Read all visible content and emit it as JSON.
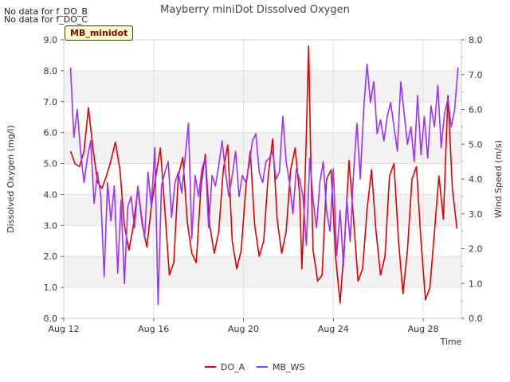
{
  "notices": [
    "No data for f_DO_B",
    "No data for f_DO_C"
  ],
  "badge": "MB_minidot",
  "chart_data": {
    "type": "line",
    "title": "Mayberry miniDot Dissolved Oxygen",
    "xlabel": "Time",
    "ylabel": "Dissolved Oxygen (mg/l)",
    "y2label": "Wind Speed (m/s)",
    "xlim": [
      12,
      29.7
    ],
    "ylim": [
      0,
      9
    ],
    "y2lim": [
      0,
      8
    ],
    "x_ticks": [
      12,
      16,
      20,
      24,
      28
    ],
    "x_tick_labels": [
      "Aug 12",
      "Aug 16",
      "Aug 20",
      "Aug 24",
      "Aug 28"
    ],
    "y_ticks": [
      "0.0",
      "1.0",
      "2.0",
      "3.0",
      "4.0",
      "5.0",
      "6.0",
      "7.0",
      "8.0",
      "9.0"
    ],
    "y2_ticks": [
      "0.0",
      "1.0",
      "2.0",
      "3.0",
      "4.0",
      "5.0",
      "6.0",
      "7.0",
      "8.0"
    ],
    "grid": true,
    "legend_position": "bottom",
    "series": [
      {
        "name": "DO_A",
        "axis": "left",
        "color": "#e00000",
        "x": [
          12.3,
          12.5,
          12.7,
          12.9,
          13.1,
          13.3,
          13.5,
          13.7,
          13.9,
          14.1,
          14.3,
          14.5,
          14.7,
          14.9,
          15.1,
          15.3,
          15.5,
          15.7,
          15.9,
          16.1,
          16.3,
          16.5,
          16.7,
          16.9,
          17.1,
          17.3,
          17.5,
          17.7,
          17.9,
          18.1,
          18.3,
          18.5,
          18.7,
          18.9,
          19.1,
          19.3,
          19.5,
          19.7,
          19.9,
          20.1,
          20.3,
          20.5,
          20.7,
          20.9,
          21.1,
          21.3,
          21.5,
          21.7,
          21.9,
          22.1,
          22.3,
          22.5,
          22.6,
          22.7,
          22.8,
          22.9,
          23.0,
          23.1,
          23.3,
          23.5,
          23.7,
          23.9,
          24.1,
          24.3,
          24.5,
          24.7,
          24.9,
          25.1,
          25.3,
          25.5,
          25.7,
          25.9,
          26.1,
          26.3,
          26.5,
          26.7,
          26.9,
          27.1,
          27.3,
          27.5,
          27.7,
          27.9,
          28.1,
          28.3,
          28.5,
          28.7,
          28.9,
          29.1,
          29.3,
          29.5
        ],
        "y": [
          5.4,
          5.0,
          4.9,
          5.4,
          6.8,
          5.5,
          4.4,
          4.2,
          4.6,
          5.1,
          5.7,
          4.8,
          3.0,
          2.2,
          3.0,
          4.2,
          3.0,
          2.3,
          3.6,
          4.6,
          5.5,
          3.5,
          1.4,
          1.8,
          4.6,
          5.2,
          3.1,
          2.1,
          1.8,
          4.2,
          5.3,
          3.0,
          2.1,
          2.8,
          4.8,
          5.6,
          2.5,
          1.6,
          2.2,
          4.2,
          5.4,
          3.0,
          2.0,
          2.5,
          4.6,
          5.8,
          3.2,
          2.1,
          2.8,
          4.8,
          5.5,
          4.0,
          1.6,
          3.5,
          6.0,
          8.8,
          5.0,
          2.2,
          1.2,
          1.4,
          4.5,
          4.8,
          2.0,
          0.5,
          2.5,
          5.1,
          3.2,
          1.2,
          1.6,
          3.5,
          4.8,
          2.8,
          1.4,
          2.0,
          4.6,
          5.0,
          2.5,
          0.8,
          2.2,
          4.5,
          4.9,
          2.5,
          0.6,
          1.0,
          2.8,
          4.6,
          3.2,
          7.2,
          4.2,
          2.9
        ]
      },
      {
        "name": "MB_WS",
        "axis": "right",
        "color": "#9b30ff",
        "x": [
          12.3,
          12.45,
          12.6,
          12.75,
          12.9,
          13.05,
          13.2,
          13.35,
          13.5,
          13.65,
          13.8,
          13.95,
          14.1,
          14.25,
          14.4,
          14.55,
          14.7,
          14.85,
          15.0,
          15.15,
          15.3,
          15.45,
          15.6,
          15.75,
          15.9,
          16.05,
          16.2,
          16.35,
          16.5,
          16.65,
          16.8,
          16.95,
          17.1,
          17.25,
          17.4,
          17.55,
          17.7,
          17.85,
          18.0,
          18.15,
          18.3,
          18.45,
          18.6,
          18.75,
          18.9,
          19.05,
          19.2,
          19.35,
          19.5,
          19.65,
          19.8,
          19.95,
          20.1,
          20.25,
          20.4,
          20.55,
          20.7,
          20.85,
          21.0,
          21.15,
          21.3,
          21.45,
          21.6,
          21.75,
          21.9,
          22.05,
          22.2,
          22.35,
          22.5,
          22.65,
          22.8,
          22.95,
          23.1,
          23.25,
          23.4,
          23.55,
          23.7,
          23.85,
          24.0,
          24.15,
          24.3,
          24.45,
          24.6,
          24.75,
          24.9,
          25.05,
          25.2,
          25.35,
          25.5,
          25.65,
          25.8,
          25.95,
          26.1,
          26.25,
          26.4,
          26.55,
          26.7,
          26.85,
          27.0,
          27.15,
          27.3,
          27.45,
          27.6,
          27.75,
          27.9,
          28.05,
          28.2,
          28.35,
          28.5,
          28.65,
          28.8,
          28.95,
          29.1,
          29.25,
          29.4,
          29.55
        ],
        "y": [
          7.2,
          5.2,
          6.0,
          4.8,
          3.9,
          4.6,
          5.1,
          3.3,
          4.2,
          3.5,
          1.2,
          3.9,
          2.8,
          3.8,
          1.3,
          3.4,
          1.0,
          3.2,
          3.5,
          2.6,
          3.8,
          3.0,
          2.3,
          4.2,
          3.2,
          4.9,
          0.4,
          3.8,
          4.2,
          4.5,
          2.9,
          3.9,
          4.2,
          3.6,
          4.6,
          5.6,
          2.3,
          4.1,
          3.5,
          4.3,
          4.6,
          2.6,
          4.1,
          3.8,
          4.4,
          5.1,
          4.2,
          3.5,
          4.1,
          4.8,
          3.5,
          4.1,
          3.9,
          4.4,
          5.1,
          5.3,
          4.2,
          3.9,
          4.5,
          4.6,
          4.8,
          4.0,
          4.2,
          5.8,
          4.5,
          3.9,
          3.0,
          4.3,
          4.0,
          3.5,
          2.1,
          4.6,
          3.4,
          2.6,
          3.9,
          4.5,
          3.1,
          2.5,
          4.3,
          1.8,
          3.1,
          1.5,
          3.4,
          2.2,
          4.2,
          5.6,
          4.0,
          6.0,
          7.3,
          6.2,
          6.8,
          5.3,
          5.7,
          5.1,
          5.8,
          6.2,
          5.5,
          4.8,
          6.8,
          5.9,
          5.0,
          5.5,
          4.5,
          6.4,
          4.7,
          5.8,
          4.6,
          6.1,
          5.5,
          6.7,
          4.9,
          5.9,
          6.3,
          5.5,
          6.0,
          7.2
        ]
      }
    ]
  }
}
